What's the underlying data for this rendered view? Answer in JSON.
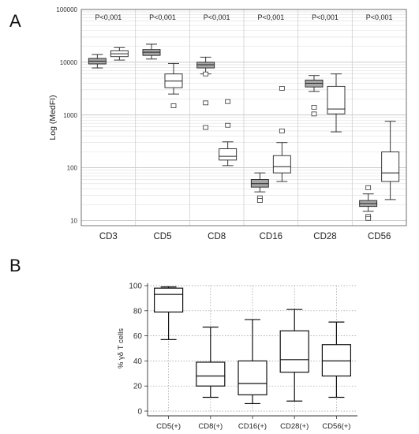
{
  "panels": [
    {
      "label": "A"
    },
    {
      "label": "B"
    }
  ],
  "chart_data": [
    {
      "type": "box",
      "panel": "A",
      "ylabel": "Log (MedFI)",
      "yscale": "log",
      "ylim": [
        8,
        100000
      ],
      "yticks": [
        "10",
        "100",
        "1000",
        "10000",
        "100000"
      ],
      "categories": [
        "CD3",
        "CD5",
        "CD8",
        "CD16",
        "CD28",
        "CD56"
      ],
      "pvalues": [
        "P<0,001",
        "P<0,001",
        "P<0,001",
        "P<0,001",
        "P<0,001",
        "P<0,001"
      ],
      "grid": true,
      "groups": [
        {
          "category": "CD3",
          "boxes": [
            {
              "fill": "#a6a6a6",
              "min": 7800,
              "q1": 9300,
              "median": 10500,
              "q3": 11800,
              "max": 14000,
              "outliers": []
            },
            {
              "fill": "#ffffff",
              "min": 11000,
              "q1": 12800,
              "median": 14500,
              "q3": 16500,
              "max": 19000,
              "outliers": []
            }
          ]
        },
        {
          "category": "CD5",
          "boxes": [
            {
              "fill": "#a6a6a6",
              "min": 11500,
              "q1": 13500,
              "median": 15500,
              "q3": 17500,
              "max": 22000,
              "outliers": []
            },
            {
              "fill": "#ffffff",
              "min": 2500,
              "q1": 3300,
              "median": 4400,
              "q3": 6000,
              "max": 9500,
              "outliers": [
                1500
              ]
            }
          ]
        },
        {
          "category": "CD8",
          "boxes": [
            {
              "fill": "#a6a6a6",
              "min": 6000,
              "q1": 7800,
              "median": 9000,
              "q3": 10000,
              "max": 12500,
              "outliers": [
                6000,
                1700,
                580
              ]
            },
            {
              "fill": "#ffffff",
              "min": 110,
              "q1": 140,
              "median": 165,
              "q3": 230,
              "max": 310,
              "outliers": [
                1800,
                640
              ]
            }
          ]
        },
        {
          "category": "CD16",
          "boxes": [
            {
              "fill": "#a6a6a6",
              "min": 35,
              "q1": 43,
              "median": 50,
              "q3": 60,
              "max": 80,
              "outliers": [
                27,
                24
              ]
            },
            {
              "fill": "#ffffff",
              "min": 55,
              "q1": 80,
              "median": 105,
              "q3": 170,
              "max": 300,
              "outliers": [
                3200,
                500
              ]
            }
          ]
        },
        {
          "category": "CD28",
          "boxes": [
            {
              "fill": "#a6a6a6",
              "min": 2800,
              "q1": 3400,
              "median": 4000,
              "q3": 4600,
              "max": 5600,
              "outliers": [
                1400,
                1050
              ]
            },
            {
              "fill": "#ffffff",
              "min": 480,
              "q1": 1050,
              "median": 1300,
              "q3": 3500,
              "max": 6000,
              "outliers": []
            }
          ]
        },
        {
          "category": "CD56",
          "boxes": [
            {
              "fill": "#a6a6a6",
              "min": 15,
              "q1": 18.5,
              "median": 21,
              "q3": 24,
              "max": 32,
              "outliers": [
                42,
                12,
                11
              ]
            },
            {
              "fill": "#ffffff",
              "min": 25,
              "q1": 55,
              "median": 80,
              "q3": 200,
              "max": 760,
              "outliers": []
            }
          ]
        }
      ]
    },
    {
      "type": "box",
      "panel": "B",
      "ylabel": "% γδ T cells",
      "ylim": [
        0,
        100
      ],
      "yticks": [
        "0",
        "20",
        "40",
        "60",
        "80",
        "100"
      ],
      "categories": [
        "CD5(+)",
        "CD8(+)",
        "CD16(+)",
        "CD28(+)",
        "CD56(+)"
      ],
      "grid": true,
      "boxes": [
        {
          "min": 57,
          "q1": 79,
          "median": 93,
          "q3": 98,
          "max": 99
        },
        {
          "min": 11,
          "q1": 20,
          "median": 28,
          "q3": 39,
          "max": 67
        },
        {
          "min": 6,
          "q1": 13,
          "median": 22,
          "q3": 40,
          "max": 73
        },
        {
          "min": 8,
          "q1": 31,
          "median": 41,
          "q3": 64,
          "max": 81
        },
        {
          "min": 11,
          "q1": 28,
          "median": 40,
          "q3": 53,
          "max": 71
        }
      ]
    }
  ]
}
